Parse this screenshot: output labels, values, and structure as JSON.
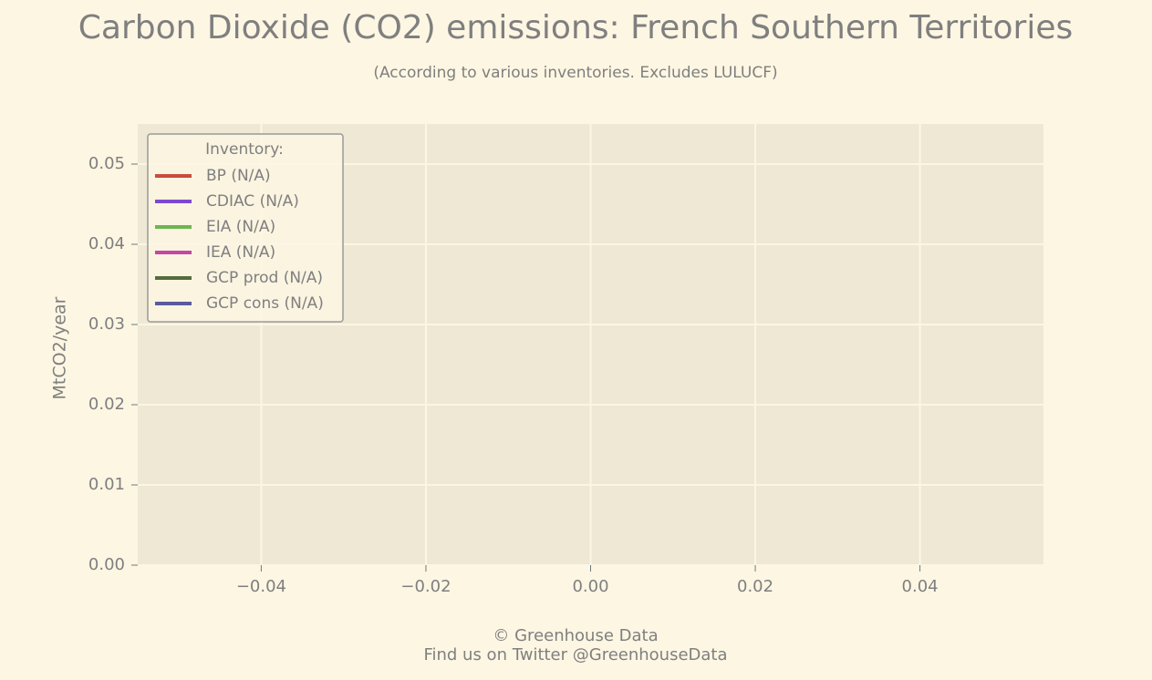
{
  "chart_data": {
    "type": "line",
    "title": "Carbon Dioxide (CO2) emissions: French Southern Territories",
    "subtitle": "(According to various inventories. Excludes LULUCF)",
    "y_label": "MtCO2/year",
    "legend_title": "Inventory:",
    "legend": "upper left",
    "grid": true,
    "x": [],
    "series": [
      {
        "name": "BP (N/A)",
        "color": "#cb4b3c",
        "values": []
      },
      {
        "name": "CDIAC (N/A)",
        "color": "#7e48d0",
        "values": []
      },
      {
        "name": "EIA (N/A)",
        "color": "#6cb64f",
        "values": []
      },
      {
        "name": "IEA (N/A)",
        "color": "#c545a8",
        "values": []
      },
      {
        "name": "GCP prod (N/A)",
        "color": "#566b3d",
        "values": []
      },
      {
        "name": "GCP cons (N/A)",
        "color": "#5b5b9f",
        "values": []
      }
    ],
    "xlim": [
      -0.055,
      0.055
    ],
    "xticks": [
      {
        "value": -0.04,
        "label": "−0.04"
      },
      {
        "value": -0.02,
        "label": "−0.02"
      },
      {
        "value": 0,
        "label": "0.00"
      },
      0.02,
      0.04
    ],
    "ylim": [
      0,
      0.055
    ],
    "yticks": [
      {
        "value": 0,
        "label": "0.00"
      },
      0.01,
      0.02,
      0.03,
      0.04,
      0.05
    ],
    "footer": [
      "© Greenhouse Data",
      "Find us on Twitter @GreenhouseData"
    ]
  }
}
